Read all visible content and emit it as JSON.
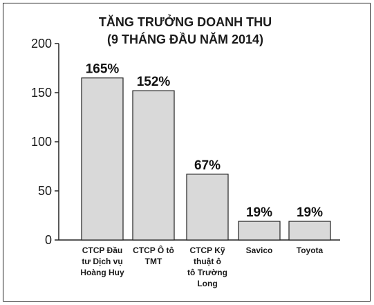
{
  "chart_data": {
    "type": "bar",
    "title": "TĂNG TRƯỞNG DOANH THU",
    "subtitle": "(9 THÁNG ĐẦU NĂM 2014)",
    "categories": [
      [
        "CTCP Đầu",
        "tư Dịch vụ",
        "Hoàng Huy"
      ],
      [
        "CTCP Ô tô",
        "TMT"
      ],
      [
        "CTCP Kỹ",
        "thuật ô",
        "tô Trường",
        "Long"
      ],
      [
        "Savico"
      ],
      [
        "Toyota"
      ]
    ],
    "values": [
      165,
      152,
      67,
      19,
      19
    ],
    "data_labels": [
      "165%",
      "152%",
      "67%",
      "19%",
      "19%"
    ],
    "yticks": [
      0,
      50,
      100,
      150,
      200
    ],
    "ylim": [
      0,
      200
    ],
    "xlabel": "",
    "ylabel": "",
    "grid": false,
    "colors": {
      "bar_fill": "#d9d9d9",
      "bar_stroke": "#222222",
      "axis": "#222222"
    }
  }
}
